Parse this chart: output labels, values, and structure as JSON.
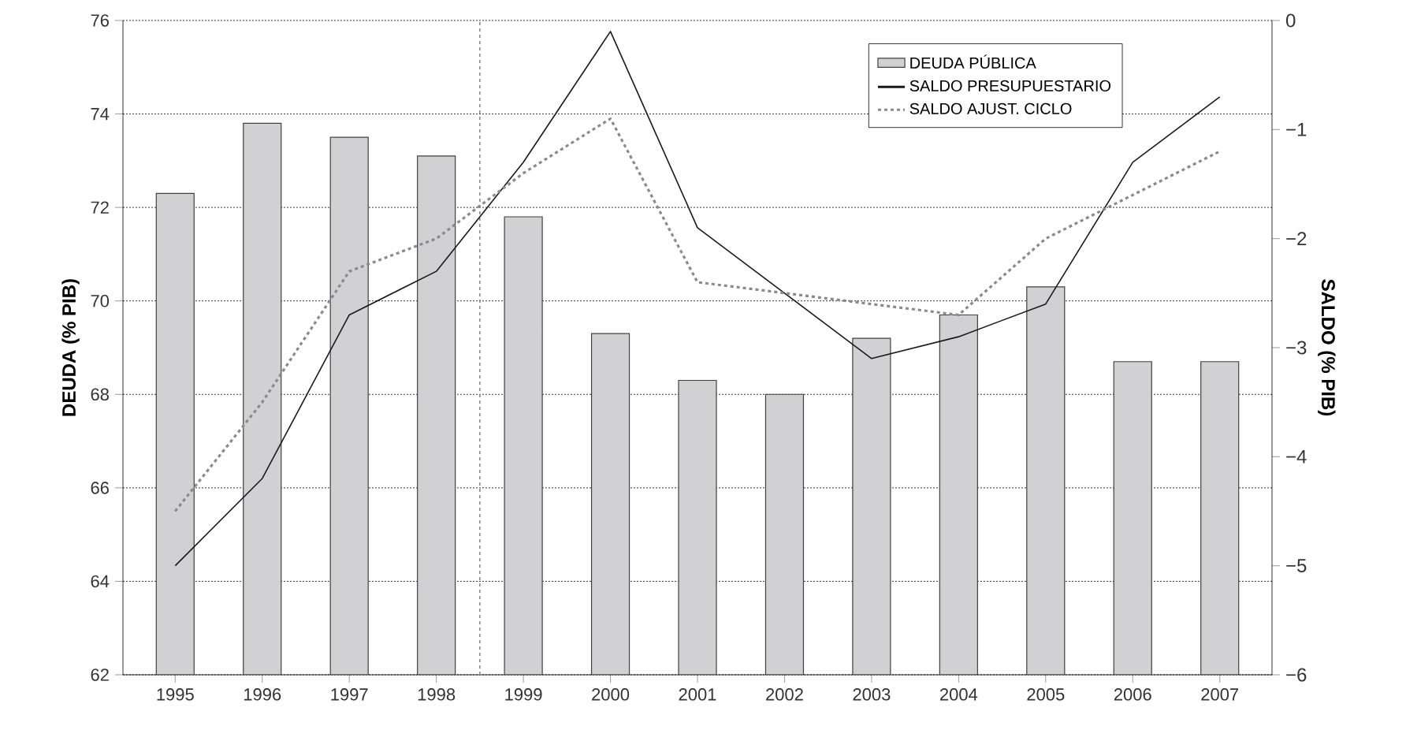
{
  "chart_data": {
    "type": "bar",
    "x": [
      1995,
      1996,
      1997,
      1998,
      1999,
      2000,
      2001,
      2002,
      2003,
      2004,
      2005,
      2006,
      2007
    ],
    "xlim": [
      1994.4,
      2007.6
    ],
    "xticks": [
      1995,
      1996,
      1997,
      1998,
      1999,
      2000,
      2001,
      2002,
      2003,
      2004,
      2005,
      2006,
      2007
    ],
    "ylabel": "DEUDA (% PIB)",
    "y2label": "SALDO (% PIB)",
    "ylim": [
      62,
      76
    ],
    "yticks": [
      62,
      64,
      66,
      68,
      70,
      72,
      74,
      76
    ],
    "y2lim": [
      -6,
      0
    ],
    "y2ticks": [
      {
        "value": -6,
        "label": "−6"
      },
      {
        "value": -5,
        "label": "−5"
      },
      {
        "value": -4,
        "label": "−4"
      },
      {
        "value": -3,
        "label": "−3"
      },
      {
        "value": -2,
        "label": "−2"
      },
      {
        "value": -1,
        "label": "−1"
      },
      0
    ],
    "series": [
      {
        "name": "DEUDA PÚBLICA",
        "color": "#d1d1d3",
        "values": [
          72.3,
          73.8,
          73.5,
          73.1,
          71.8,
          69.3,
          68.3,
          68.0,
          69.2,
          69.7,
          70.3,
          68.7,
          68.7
        ]
      },
      {
        "name": "SALDO PRESUPUESTARIO",
        "type": "line",
        "axis": "y2",
        "color": "#1a1a1a",
        "line_style": "solid",
        "values": [
          -5.0,
          -4.2,
          -2.7,
          -2.3,
          -1.3,
          -0.1,
          -1.9,
          -2.5,
          -3.1,
          -2.9,
          -2.6,
          -1.3,
          -0.7
        ]
      },
      {
        "name": "SALDO AJUST. CICLO",
        "type": "line",
        "axis": "y2",
        "color": "#8a8a8a",
        "line_style": "dotted",
        "values": [
          -4.5,
          -3.5,
          -2.3,
          -2.0,
          -1.4,
          -0.9,
          -2.4,
          -2.5,
          -2.6,
          -2.7,
          -2.0,
          -1.6,
          -1.2
        ]
      }
    ],
    "ref_lines": [
      {
        "axis": "x",
        "value": 1998.5,
        "color": "#8a8a8a",
        "line_style": "dotted"
      }
    ],
    "grid": "y",
    "legend": "top right",
    "marker": "none"
  }
}
